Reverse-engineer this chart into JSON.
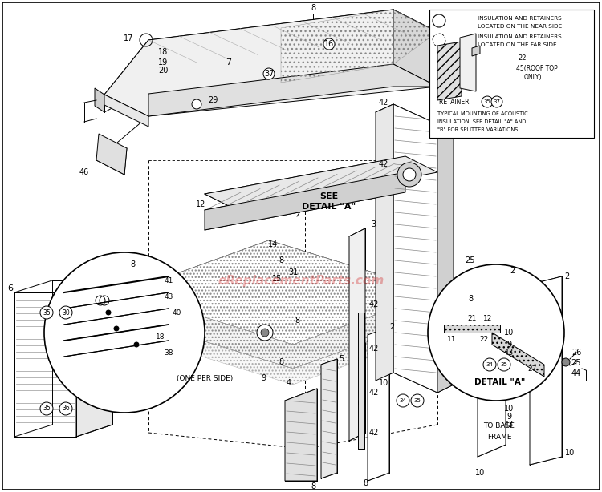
{
  "bg_color": "#ffffff",
  "lc": "#000000",
  "watermark": "eReplacementParts.com",
  "watermark_color": "#cc0000",
  "watermark_alpha": 0.3,
  "parts": {
    "labels_with_circles": [
      "35",
      "36",
      "30",
      "34",
      "35",
      "37",
      "16",
      "29"
    ],
    "circled_pairs": [
      [
        "35",
        "30"
      ],
      [
        "35",
        "36"
      ],
      [
        "34",
        "35"
      ],
      [
        "34",
        "35"
      ]
    ]
  }
}
